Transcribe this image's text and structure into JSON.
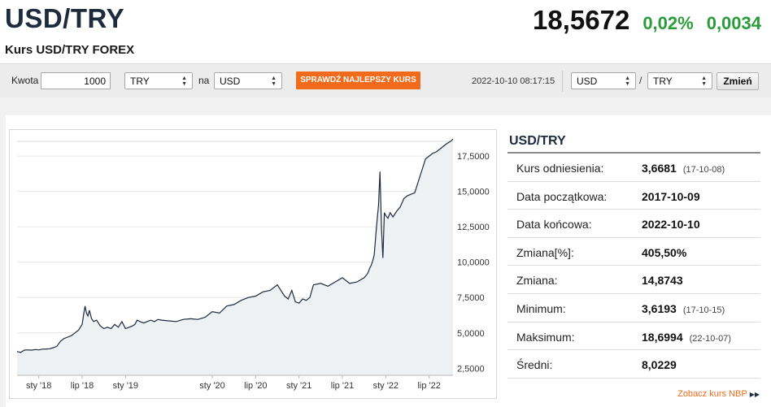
{
  "header": {
    "title": "USD/TRY",
    "subtitle": "Kurs USD/TRY FOREX",
    "price": "18,5672",
    "change_pct": "0,02%",
    "change_abs": "0,0034"
  },
  "toolbar": {
    "amount_label": "Kwota",
    "amount_value": "1000",
    "from_currency": "TRY",
    "to_label": "na",
    "to_currency": "USD",
    "best_rate_button": "SPRAWDŹ NAJLEPSZY KURS",
    "timestamp": "2022-10-10 08:17:15",
    "pair_base": "USD",
    "pair_slash": "/",
    "pair_quote": "TRY",
    "change_button": "Zmień"
  },
  "stats": {
    "title": "USD/TRY",
    "rows": [
      {
        "label": "Kurs odniesienia:",
        "value": "3,6681",
        "sub": "(17-10-08)"
      },
      {
        "label": "Data początkowa:",
        "value": "2017-10-09",
        "sub": ""
      },
      {
        "label": "Data końcowa:",
        "value": "2022-10-10",
        "sub": ""
      },
      {
        "label": "Zmiana[%]:",
        "value": "405,50%",
        "sub": ""
      },
      {
        "label": "Zmiana:",
        "value": "14,8743",
        "sub": ""
      },
      {
        "label": "Minimum:",
        "value": "3,6193",
        "sub": "(17-10-15)"
      },
      {
        "label": "Maksimum:",
        "value": "18,6994",
        "sub": "(22-10-07)"
      },
      {
        "label": "Średni:",
        "value": "8,0229",
        "sub": ""
      }
    ],
    "nbp_link": "Zobacz kurs NBP"
  },
  "colors": {
    "accent_orange": "#f26a1b",
    "positive_green": "#2a9d3a",
    "line": "#1d2b3d",
    "area": "#eef1f4"
  },
  "chart_data": {
    "type": "area",
    "x_tick_labels": [
      "sty '18",
      "lip '18",
      "sty '19",
      "sty '20",
      "lip '20",
      "sty '21",
      "lip '21",
      "sty '22",
      "lip '22"
    ],
    "x_tick_months": [
      3,
      9,
      15,
      27,
      33,
      39,
      45,
      51,
      57
    ],
    "y_tick_labels": [
      "2,5000",
      "5,0000",
      "7,5000",
      "10,0000",
      "12,5000",
      "15,0000",
      "17,5000"
    ],
    "y_ticks": [
      2.5,
      5,
      7.5,
      10,
      12.5,
      15,
      17.5
    ],
    "ylim": [
      2.0,
      19.0
    ],
    "x_range_months": [
      0,
      60.3
    ],
    "grid": "horizontal",
    "x": [
      0,
      0.5,
      1,
      1.5,
      2,
      2.5,
      3,
      3.5,
      4,
      4.5,
      5,
      5.5,
      6,
      6.5,
      7,
      7.5,
      8,
      8.5,
      9,
      9.2,
      9.4,
      9.6,
      9.8,
      10,
      10.3,
      10.6,
      11,
      11.5,
      12,
      12.5,
      13,
      13.5,
      14,
      14.5,
      15,
      15.5,
      16,
      16.3,
      16.6,
      17,
      17.5,
      18,
      18.5,
      19,
      19.5,
      20,
      21,
      22,
      23,
      24,
      25,
      26,
      27,
      28,
      29,
      30,
      31,
      32,
      33,
      34,
      35,
      36,
      37,
      37.5,
      38,
      38.5,
      39,
      39.5,
      40,
      40.5,
      41,
      42,
      43,
      44,
      45,
      46,
      47,
      48,
      48.5,
      48.8,
      49,
      49.2,
      49.4,
      49.6,
      49.8,
      50,
      50.2,
      50.4,
      50.6,
      50.8,
      51,
      51.3,
      51.6,
      52,
      52.5,
      53,
      53.5,
      54,
      54.5,
      55,
      55.5,
      56,
      56.5,
      57,
      57.5,
      58,
      58.5,
      59,
      59.5,
      60,
      60.3
    ],
    "y": [
      3.68,
      3.62,
      3.78,
      3.8,
      3.78,
      3.82,
      3.8,
      3.85,
      3.86,
      3.88,
      3.95,
      4.05,
      4.4,
      4.6,
      4.7,
      4.8,
      5.0,
      5.2,
      5.6,
      6.3,
      6.9,
      6.4,
      6.2,
      6.6,
      6.0,
      5.8,
      5.9,
      5.5,
      5.3,
      5.4,
      5.3,
      5.6,
      5.4,
      5.8,
      5.3,
      5.4,
      5.5,
      5.6,
      5.9,
      5.8,
      5.7,
      5.8,
      5.9,
      5.8,
      5.95,
      5.9,
      5.85,
      5.8,
      5.95,
      6.0,
      5.95,
      6.1,
      6.5,
      6.4,
      6.9,
      7.0,
      7.3,
      7.5,
      7.6,
      7.9,
      8.0,
      8.4,
      7.6,
      7.4,
      8.0,
      7.2,
      7.1,
      7.4,
      7.3,
      7.5,
      8.4,
      8.5,
      8.3,
      8.6,
      8.9,
      8.5,
      8.6,
      8.9,
      9.2,
      9.6,
      9.8,
      10.1,
      10.5,
      11.8,
      13.0,
      14.0,
      16.4,
      12.5,
      10.3,
      13.5,
      13.3,
      13.1,
      13.5,
      13.2,
      13.6,
      13.9,
      14.5,
      14.7,
      14.8,
      14.9,
      15.7,
      16.5,
      17.3,
      17.5,
      17.7,
      17.8,
      18.0,
      18.2,
      18.4,
      18.55,
      18.7
    ]
  }
}
